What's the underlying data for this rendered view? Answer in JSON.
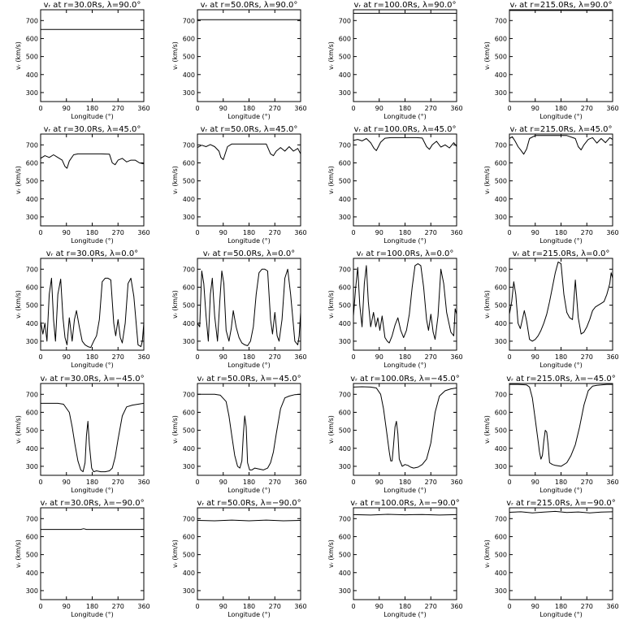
{
  "shared": {
    "xlabel": "Longitude (°)",
    "ylabel": "vᵣ (km/s)",
    "xticks": [
      0,
      90,
      180,
      270,
      360
    ],
    "yticks": [
      300,
      400,
      500,
      600,
      700
    ],
    "xlim": [
      0,
      360
    ],
    "ylim": [
      250,
      760
    ],
    "line_color": "#000000",
    "background": "#ffffff"
  },
  "chart_data": [
    {
      "type": "line",
      "title": "vᵣ at r=30.0Rs, λ=90.0°",
      "xlabel": "Longitude (°)",
      "ylabel": "vᵣ (km/s)",
      "x": [
        0,
        360
      ],
      "values": [
        651,
        651
      ]
    },
    {
      "type": "line",
      "title": "vᵣ at r=50.0Rs, λ=90.0°",
      "xlabel": "Longitude (°)",
      "ylabel": "vᵣ (km/s)",
      "x": [
        0,
        360
      ],
      "values": [
        705,
        705
      ]
    },
    {
      "type": "line",
      "title": "vᵣ at r=100.0Rs, λ=90.0°",
      "xlabel": "Longitude (°)",
      "ylabel": "vᵣ (km/s)",
      "x": [
        0,
        360
      ],
      "values": [
        740,
        740
      ]
    },
    {
      "type": "line",
      "title": "vᵣ at r=215.0Rs, λ=90.0°",
      "xlabel": "Longitude (°)",
      "ylabel": "vᵣ (km/s)",
      "x": [
        0,
        360
      ],
      "values": [
        756,
        756
      ]
    },
    {
      "type": "line",
      "title": "vᵣ at r=30.0Rs, λ=45.0°",
      "xlabel": "Longitude (°)",
      "ylabel": "vᵣ (km/s)",
      "x": [
        0,
        15,
        30,
        45,
        60,
        75,
        85,
        92,
        100,
        115,
        130,
        150,
        180,
        210,
        240,
        250,
        260,
        270,
        285,
        300,
        315,
        330,
        345,
        360
      ],
      "values": [
        625,
        640,
        630,
        645,
        630,
        615,
        580,
        570,
        610,
        645,
        650,
        650,
        650,
        650,
        648,
        600,
        590,
        615,
        625,
        605,
        615,
        615,
        600,
        595
      ]
    },
    {
      "type": "line",
      "title": "vᵣ at r=50.0Rs, λ=45.0°",
      "xlabel": "Longitude (°)",
      "ylabel": "vᵣ (km/s)",
      "x": [
        0,
        15,
        30,
        45,
        60,
        75,
        82,
        90,
        105,
        120,
        150,
        180,
        210,
        240,
        255,
        265,
        275,
        290,
        305,
        320,
        335,
        350,
        360
      ],
      "values": [
        685,
        698,
        690,
        702,
        690,
        665,
        630,
        618,
        690,
        705,
        705,
        705,
        705,
        705,
        650,
        640,
        665,
        685,
        665,
        690,
        665,
        680,
        650
      ]
    },
    {
      "type": "line",
      "title": "vᵣ at r=100.0Rs, λ=45.0°",
      "xlabel": "Longitude (°)",
      "ylabel": "vᵣ (km/s)",
      "x": [
        0,
        15,
        30,
        45,
        60,
        72,
        80,
        95,
        110,
        130,
        160,
        190,
        220,
        240,
        255,
        265,
        275,
        290,
        305,
        320,
        335,
        350,
        360
      ],
      "values": [
        725,
        730,
        722,
        735,
        712,
        680,
        668,
        715,
        737,
        740,
        740,
        740,
        740,
        738,
        690,
        675,
        700,
        720,
        688,
        700,
        683,
        712,
        690
      ]
    },
    {
      "type": "line",
      "title": "vᵣ at r=215.0Rs, λ=45.0°",
      "xlabel": "Longitude (°)",
      "ylabel": "vᵣ (km/s)",
      "x": [
        0,
        10,
        20,
        30,
        40,
        50,
        60,
        70,
        90,
        120,
        160,
        200,
        230,
        240,
        250,
        260,
        275,
        290,
        305,
        320,
        335,
        350,
        360
      ],
      "values": [
        735,
        745,
        720,
        690,
        670,
        648,
        678,
        735,
        752,
        752,
        752,
        752,
        735,
        690,
        672,
        700,
        730,
        740,
        710,
        735,
        712,
        740,
        730
      ]
    },
    {
      "type": "line",
      "title": "vᵣ at r=30.0Rs, λ=0.0°",
      "xlabel": "Longitude (°)",
      "ylabel": "vᵣ (km/s)",
      "x": [
        0,
        8,
        15,
        22,
        30,
        38,
        45,
        52,
        60,
        70,
        78,
        85,
        92,
        100,
        110,
        118,
        125,
        135,
        145,
        155,
        165,
        175,
        185,
        195,
        205,
        215,
        225,
        235,
        245,
        255,
        262,
        270,
        278,
        285,
        295,
        305,
        315,
        325,
        340,
        350,
        355,
        360
      ],
      "values": [
        410,
        340,
        400,
        300,
        560,
        650,
        420,
        300,
        560,
        645,
        430,
        320,
        280,
        430,
        300,
        420,
        470,
        380,
        300,
        280,
        270,
        265,
        300,
        330,
        420,
        630,
        650,
        650,
        640,
        400,
        330,
        420,
        320,
        290,
        400,
        620,
        650,
        550,
        280,
        270,
        300,
        400
      ]
    },
    {
      "type": "line",
      "title": "vᵣ at r=50.0Rs, λ=0.0°",
      "xlabel": "Longitude (°)",
      "ylabel": "vᵣ (km/s)",
      "x": [
        0,
        8,
        15,
        22,
        30,
        38,
        45,
        52,
        60,
        70,
        78,
        85,
        92,
        100,
        110,
        118,
        125,
        135,
        145,
        155,
        165,
        175,
        185,
        195,
        205,
        215,
        225,
        235,
        245,
        255,
        262,
        270,
        278,
        285,
        295,
        305,
        315,
        325,
        340,
        350,
        355,
        360
      ],
      "values": [
        400,
        380,
        690,
        620,
        440,
        300,
        560,
        650,
        440,
        300,
        520,
        690,
        620,
        360,
        300,
        370,
        470,
        380,
        320,
        290,
        280,
        275,
        300,
        380,
        560,
        680,
        700,
        700,
        690,
        420,
        340,
        460,
        330,
        300,
        420,
        650,
        700,
        560,
        300,
        280,
        330,
        460
      ]
    },
    {
      "type": "line",
      "title": "vᵣ at r=100.0Rs, λ=0.0°",
      "xlabel": "Longitude (°)",
      "ylabel": "vᵣ (km/s)",
      "x": [
        0,
        8,
        15,
        22,
        30,
        38,
        45,
        52,
        60,
        70,
        78,
        85,
        92,
        100,
        110,
        118,
        125,
        135,
        145,
        155,
        165,
        175,
        185,
        195,
        205,
        215,
        225,
        235,
        245,
        255,
        262,
        270,
        278,
        285,
        295,
        305,
        315,
        325,
        340,
        350,
        355,
        360
      ],
      "values": [
        440,
        600,
        710,
        500,
        380,
        620,
        720,
        520,
        380,
        460,
        380,
        430,
        360,
        440,
        320,
        300,
        290,
        330,
        390,
        430,
        360,
        320,
        360,
        450,
        600,
        720,
        730,
        720,
        600,
        420,
        360,
        450,
        350,
        310,
        440,
        700,
        620,
        460,
        350,
        330,
        480,
        450
      ]
    },
    {
      "type": "line",
      "title": "vᵣ at r=215.0Rs, λ=0.0°",
      "xlabel": "Longitude (°)",
      "ylabel": "vᵣ (km/s)",
      "x": [
        0,
        8,
        15,
        22,
        30,
        38,
        45,
        52,
        60,
        70,
        80,
        90,
        100,
        110,
        120,
        130,
        140,
        150,
        160,
        170,
        180,
        190,
        200,
        210,
        220,
        230,
        240,
        250,
        260,
        270,
        280,
        290,
        300,
        310,
        320,
        330,
        340,
        350,
        355,
        360
      ],
      "values": [
        450,
        520,
        630,
        560,
        400,
        370,
        420,
        470,
        410,
        310,
        300,
        310,
        330,
        360,
        400,
        450,
        520,
        600,
        680,
        740,
        730,
        560,
        460,
        430,
        420,
        640,
        430,
        340,
        350,
        380,
        420,
        470,
        490,
        500,
        510,
        520,
        560,
        620,
        680,
        650
      ]
    },
    {
      "type": "line",
      "title": "vᵣ at r=30.0Rs, λ=−45.0°",
      "xlabel": "Longitude (°)",
      "ylabel": "vᵣ (km/s)",
      "x": [
        0,
        30,
        60,
        80,
        100,
        110,
        120,
        130,
        140,
        148,
        155,
        160,
        165,
        170,
        178,
        185,
        195,
        210,
        225,
        240,
        250,
        260,
        270,
        285,
        300,
        320,
        340,
        360
      ],
      "values": [
        650,
        650,
        650,
        645,
        600,
        520,
        420,
        330,
        280,
        270,
        320,
        470,
        550,
        420,
        290,
        270,
        275,
        270,
        270,
        275,
        290,
        350,
        450,
        580,
        630,
        640,
        645,
        650
      ]
    },
    {
      "type": "line",
      "title": "vᵣ at r=50.0Rs, λ=−45.0°",
      "xlabel": "Longitude (°)",
      "ylabel": "vᵣ (km/s)",
      "x": [
        0,
        30,
        60,
        80,
        100,
        110,
        120,
        130,
        140,
        148,
        155,
        160,
        165,
        170,
        175,
        182,
        190,
        200,
        215,
        230,
        245,
        255,
        265,
        275,
        290,
        305,
        320,
        340,
        360
      ],
      "values": [
        700,
        700,
        700,
        695,
        660,
        580,
        470,
        360,
        300,
        290,
        330,
        470,
        580,
        520,
        320,
        280,
        280,
        290,
        285,
        280,
        290,
        320,
        380,
        480,
        620,
        680,
        690,
        698,
        700
      ]
    },
    {
      "type": "line",
      "title": "vᵣ at r=100.0Rs, λ=−45.0°",
      "xlabel": "Longitude (°)",
      "ylabel": "vᵣ (km/s)",
      "x": [
        0,
        30,
        60,
        80,
        95,
        105,
        115,
        125,
        130,
        135,
        140,
        145,
        150,
        155,
        160,
        165,
        170,
        180,
        190,
        200,
        210,
        225,
        240,
        255,
        270,
        285,
        300,
        320,
        340,
        360
      ],
      "values": [
        740,
        742,
        740,
        735,
        700,
        620,
        500,
        380,
        330,
        330,
        420,
        520,
        550,
        480,
        340,
        320,
        300,
        310,
        305,
        295,
        290,
        295,
        310,
        340,
        430,
        600,
        690,
        720,
        730,
        735
      ]
    },
    {
      "type": "line",
      "title": "vᵣ at r=215.0Rs, λ=−45.0°",
      "xlabel": "Longitude (°)",
      "ylabel": "vᵣ (km/s)",
      "x": [
        0,
        30,
        60,
        70,
        80,
        90,
        100,
        105,
        110,
        115,
        120,
        125,
        130,
        135,
        140,
        150,
        160,
        180,
        200,
        215,
        230,
        245,
        260,
        275,
        290,
        305,
        320,
        340,
        360
      ],
      "values": [
        755,
        755,
        752,
        740,
        680,
        560,
        440,
        380,
        340,
        360,
        440,
        500,
        490,
        420,
        320,
        310,
        305,
        300,
        320,
        360,
        420,
        520,
        640,
        720,
        745,
        750,
        752,
        755,
        755
      ]
    },
    {
      "type": "line",
      "title": "vᵣ at r=30.0Rs, λ=−90.0°",
      "xlabel": "Longitude (°)",
      "ylabel": "vᵣ (km/s)",
      "x": [
        0,
        140,
        150,
        160,
        360
      ],
      "values": [
        640,
        640,
        644,
        640,
        640
      ]
    },
    {
      "type": "line",
      "title": "vᵣ at r=50.0Rs, λ=−90.0°",
      "xlabel": "Longitude (°)",
      "ylabel": "vᵣ (km/s)",
      "x": [
        0,
        60,
        120,
        180,
        240,
        300,
        360
      ],
      "values": [
        690,
        688,
        692,
        688,
        692,
        688,
        690
      ]
    },
    {
      "type": "line",
      "title": "vᵣ at r=100.0Rs, λ=−90.0°",
      "xlabel": "Longitude (°)",
      "ylabel": "vᵣ (km/s)",
      "x": [
        0,
        60,
        120,
        180,
        240,
        300,
        360
      ],
      "values": [
        722,
        720,
        724,
        721,
        723,
        720,
        722
      ]
    },
    {
      "type": "line",
      "title": "vᵣ at r=215.0Rs, λ=−90.0°",
      "xlabel": "Longitude (°)",
      "ylabel": "vᵣ (km/s)",
      "x": [
        0,
        40,
        80,
        120,
        160,
        200,
        240,
        280,
        320,
        360
      ],
      "values": [
        735,
        738,
        732,
        736,
        740,
        734,
        737,
        732,
        736,
        738
      ]
    }
  ]
}
